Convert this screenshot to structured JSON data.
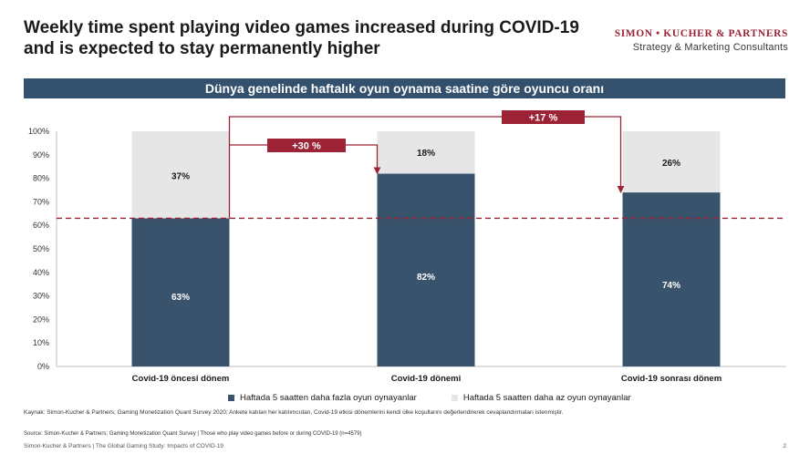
{
  "header": {
    "title": "Weekly time spent playing video games increased during COVID-19 and is expected to stay permanently higher",
    "logo_name": "SIMON • KUCHER & PARTNERS",
    "logo_subtitle": "Strategy & Marketing Consultants"
  },
  "banner": {
    "text": "Dünya genelinde haftalık oyun oynama saatine göre oyuncu oranı"
  },
  "chart_data": {
    "type": "bar",
    "stacked": true,
    "categories": [
      "Covid-19 öncesi dönem",
      "Covid-19 dönemi",
      "Covid-19 sonrası dönem"
    ],
    "series": [
      {
        "name": "Haftada 5 saatten daha fazla oyun oynayanlar",
        "values": [
          63,
          82,
          74
        ],
        "labels": [
          "63%",
          "82%",
          "74%"
        ],
        "color": "#3a536d"
      },
      {
        "name": "Haftada 5 saatten daha az oyun oynayanlar",
        "values": [
          37,
          18,
          26
        ],
        "labels": [
          "37%",
          "18%",
          "26%"
        ],
        "color": "#e6e6e6"
      }
    ],
    "ylim": [
      0,
      100
    ],
    "yticks": [
      "0%",
      "10%",
      "20%",
      "30%",
      "40%",
      "50%",
      "60%",
      "70%",
      "80%",
      "90%",
      "100%"
    ],
    "reference_line": {
      "value": 63,
      "style": "dashed",
      "color": "#9b2335"
    },
    "annotations": [
      {
        "text": "+30 %",
        "from": 0,
        "to": 1
      },
      {
        "text": "+17 %",
        "from": 0,
        "to": 2
      }
    ],
    "accent_color": "#9b2335",
    "grid": false,
    "legend_position": "bottom"
  },
  "note": "Kaynak: Simon-Kucher & Partners; Gaming Monetization Quant Survey 2020; Ankete katılan her katılımcıdan, Covid-19 etkisi dönemlerini kendi ülke koşullarını değerlendirerek cevaplandırmaları istenmiştir.",
  "source": "Source: Simon-Kucher & Partners; Gaming Monetization Quant Survey | Those who play video games before or during COVID-19 (n=4579)",
  "footer": {
    "text": "Simon-Kucher & Partners  |  The Global Gaming Study: Impacts of COVID-19",
    "page": "2"
  }
}
